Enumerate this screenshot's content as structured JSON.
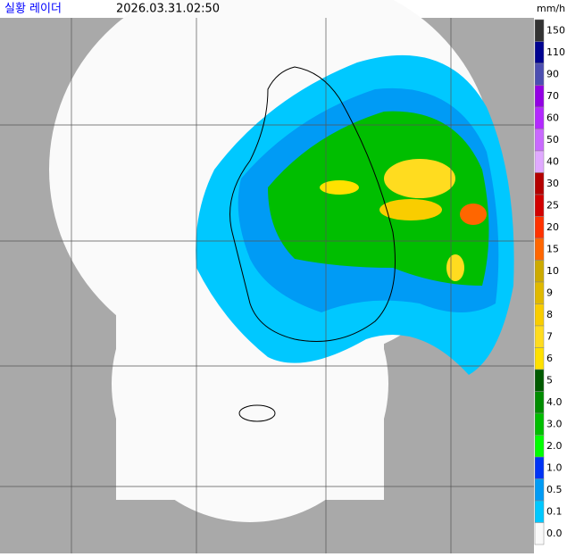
{
  "header": {
    "title": "실황 레이더",
    "time": "2026.03.31.02:50",
    "unit": "mm/h"
  },
  "legend": {
    "entries": [
      {
        "label": "150",
        "color": "#333333"
      },
      {
        "label": "110",
        "color": "#000390"
      },
      {
        "label": "90",
        "color": "#4c4eb1"
      },
      {
        "label": "70",
        "color": "#9300e4"
      },
      {
        "label": "60",
        "color": "#b329ff"
      },
      {
        "label": "50",
        "color": "#c969ff"
      },
      {
        "label": "40",
        "color": "#e0a9ff"
      },
      {
        "label": "30",
        "color": "#b40000"
      },
      {
        "label": "25",
        "color": "#d20000"
      },
      {
        "label": "20",
        "color": "#ff3200"
      },
      {
        "label": "15",
        "color": "#ff6600"
      },
      {
        "label": "10",
        "color": "#ccaa00"
      },
      {
        "label": "9",
        "color": "#e0b900"
      },
      {
        "label": "8",
        "color": "#f9cd00"
      },
      {
        "label": "7",
        "color": "#ffdc1f"
      },
      {
        "label": "6",
        "color": "#ffe100"
      },
      {
        "label": "5",
        "color": "#005a00"
      },
      {
        "label": "4.0",
        "color": "#008c00"
      },
      {
        "label": "3.0",
        "color": "#00be00"
      },
      {
        "label": "2.0",
        "color": "#00ff00"
      },
      {
        "label": "1.0",
        "color": "#0033f5"
      },
      {
        "label": "0.5",
        "color": "#009bf5"
      },
      {
        "label": "0.1",
        "color": "#00c8ff"
      },
      {
        "label": "0.0",
        "color": "#fafafa"
      }
    ]
  }
}
